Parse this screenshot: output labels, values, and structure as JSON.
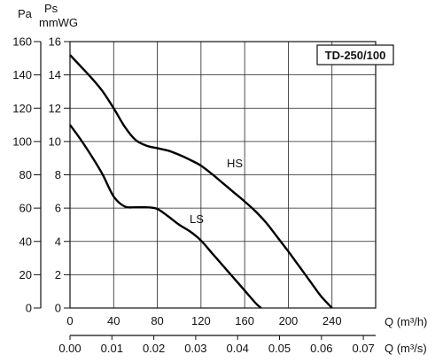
{
  "chart_data": {
    "type": "line",
    "title": "TD-250/100",
    "y_axes": [
      {
        "label": "Pa",
        "range": [
          0,
          160
        ],
        "ticks": [
          "0",
          "20",
          "40",
          "60",
          "80",
          "100",
          "120",
          "140",
          "160"
        ]
      },
      {
        "label_line1": "Ps",
        "label_line2": "mmWG",
        "range": [
          0,
          16
        ],
        "ticks": [
          "0",
          "2",
          "4",
          "6",
          "8",
          "10",
          "12",
          "14",
          "16"
        ]
      }
    ],
    "x_axes": [
      {
        "label": "Q (m³/h)",
        "range": [
          0,
          280
        ],
        "ticks": [
          "0",
          "40",
          "80",
          "120",
          "160",
          "200",
          "240"
        ]
      },
      {
        "label": "Q (m³/s)",
        "ticks": [
          "0.00",
          "0.01",
          "0.02",
          "0.03",
          "0.04",
          "0.05",
          "0.06",
          "0.07"
        ]
      }
    ],
    "grid": true,
    "series": [
      {
        "name": "HS",
        "x": [
          0,
          10,
          20,
          30,
          40,
          50,
          60,
          70,
          80,
          90,
          100,
          110,
          120,
          130,
          140,
          150,
          160,
          170,
          180,
          190,
          200,
          210,
          220,
          230,
          240
        ],
        "y": [
          152,
          145,
          138,
          130,
          120,
          109,
          101,
          97.5,
          96,
          94.5,
          92,
          89,
          85.5,
          80.5,
          75,
          69.5,
          64,
          58,
          51,
          42.5,
          34,
          25,
          16,
          7,
          0
        ]
      },
      {
        "name": "LS",
        "x": [
          0,
          10,
          20,
          30,
          40,
          50,
          60,
          70,
          80,
          90,
          100,
          110,
          120,
          130,
          140,
          150,
          160,
          170,
          175
        ],
        "y": [
          110,
          101,
          91,
          80,
          67,
          61,
          60.5,
          60.5,
          59.5,
          55,
          50,
          46,
          40.5,
          33,
          25.5,
          18,
          10.5,
          3,
          0
        ]
      }
    ]
  }
}
